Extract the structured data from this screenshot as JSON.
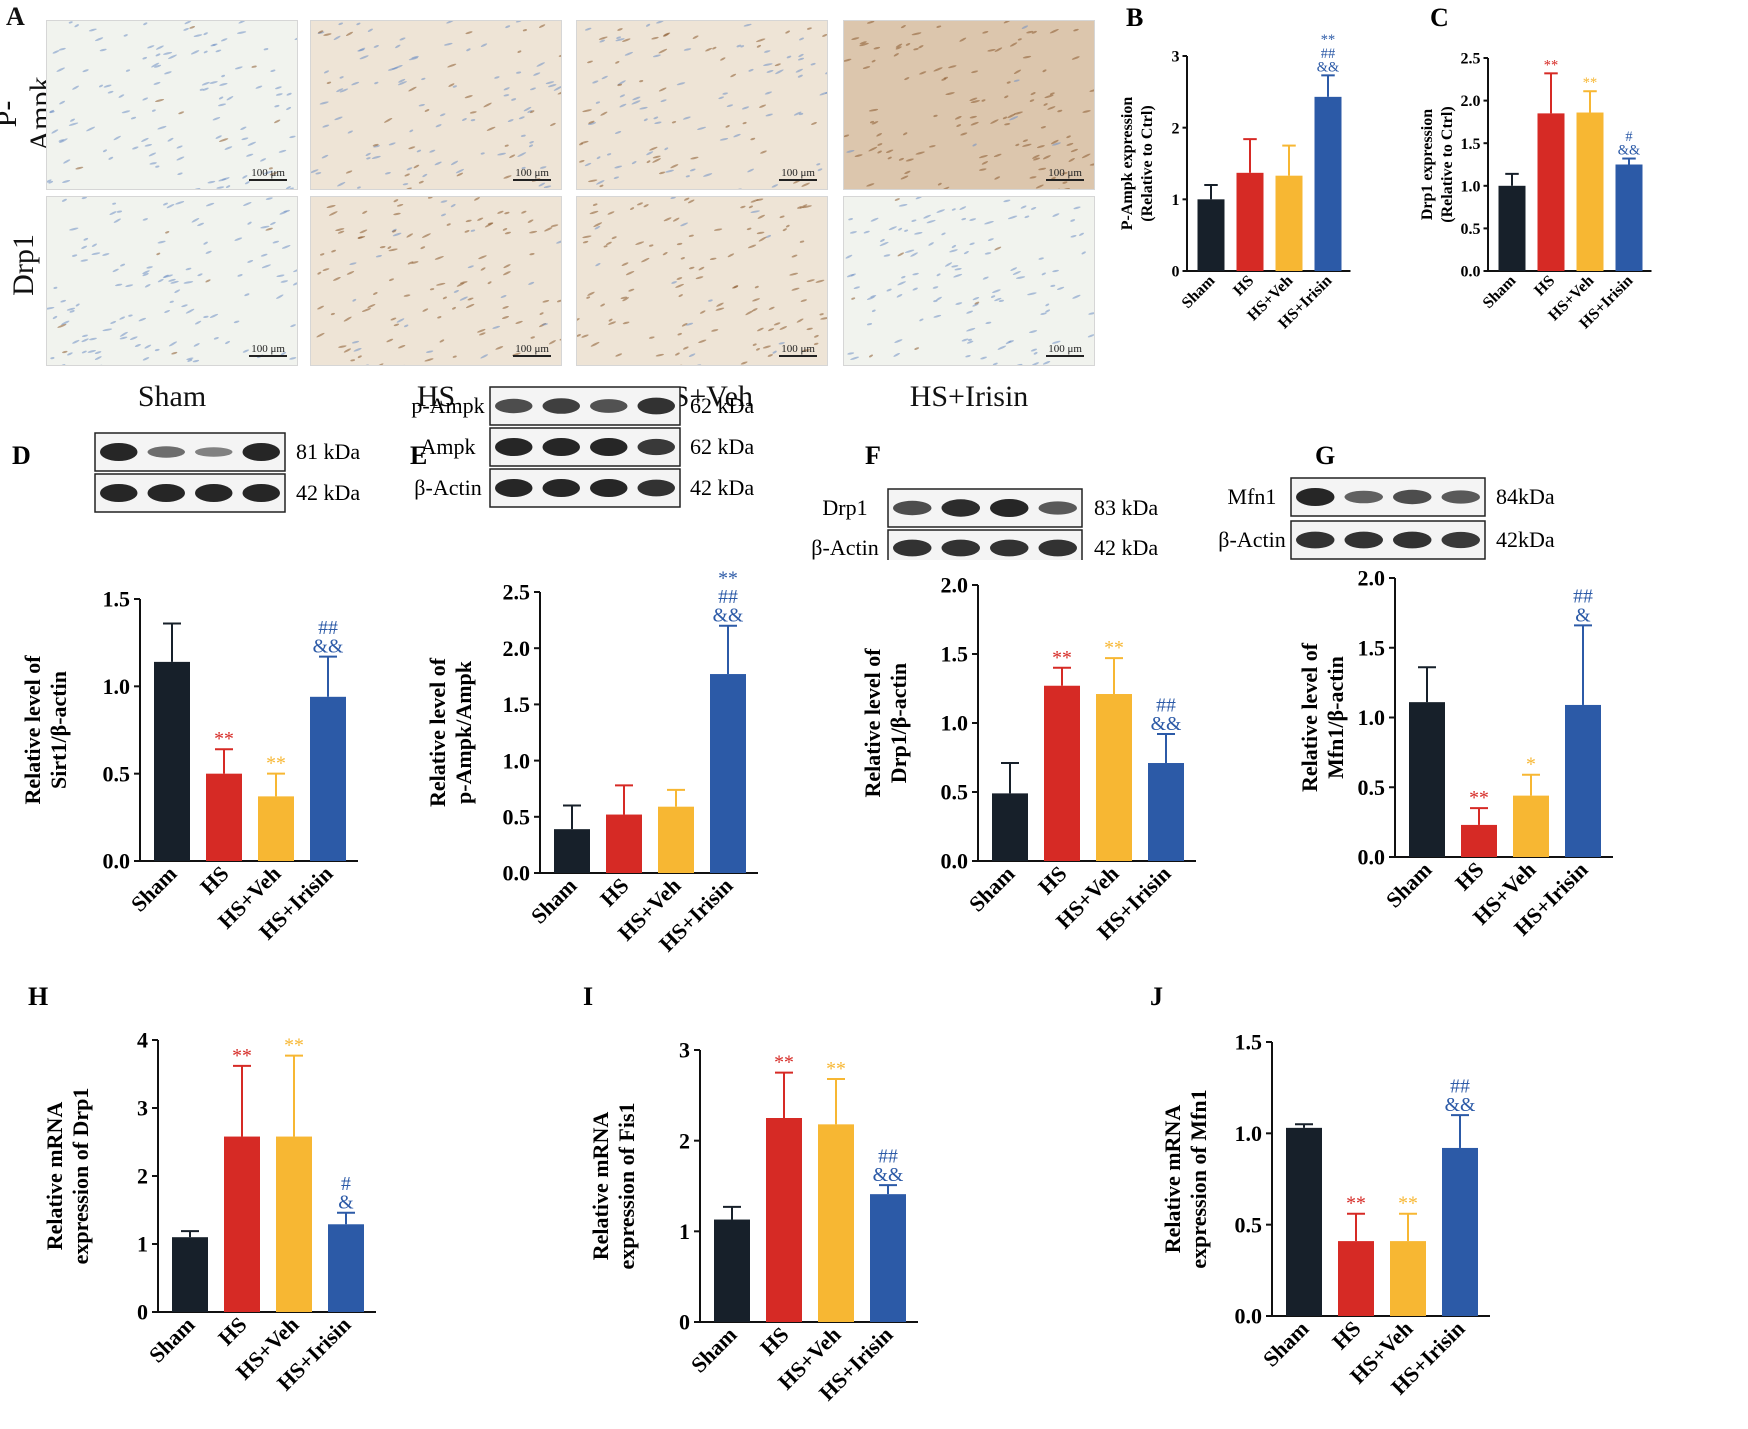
{
  "colors": {
    "Sham": "#17202a",
    "HS": "#d62a25",
    "HS+Veh": "#f7b733",
    "HS+Irisin": "#2c5aa7"
  },
  "panel_a": {
    "letter": "A",
    "row_labels": [
      "P-Ampk",
      "Drp1"
    ],
    "group_labels": [
      "Sham",
      "HS",
      "HS+Veh",
      "HS+Irisin"
    ],
    "scale_label": "100 μm",
    "stain_level": [
      [
        0.05,
        0.3,
        0.35,
        0.95
      ],
      [
        0.05,
        0.75,
        0.8,
        0.08
      ]
    ]
  },
  "blots": {
    "D": {
      "kda": [
        "81 kDa",
        "42 kDa"
      ],
      "labels": [
        "",
        ""
      ]
    },
    "E": {
      "kda": [
        "62 kDa",
        "62 kDa",
        "42 kDa"
      ],
      "labels": [
        "p-Ampk",
        "Ampk",
        "β-Actin"
      ]
    },
    "F": {
      "kda": [
        "83 kDa",
        "42 kDa"
      ],
      "labels": [
        "Drp1",
        "β-Actin"
      ]
    },
    "G": {
      "kda": [
        "84kDa",
        "42kDa"
      ],
      "labels": [
        "Mfn1",
        "β-Actin"
      ]
    }
  },
  "chart_data": [
    {
      "panel": "B",
      "type": "bar",
      "ylabel": "P-Ampk expression\n(Relative to Ctrl)",
      "categories": [
        "Sham",
        "HS",
        "HS+Veh",
        "HS+Irisin"
      ],
      "values": [
        1.0,
        1.37,
        1.33,
        2.43
      ],
      "errors": [
        0.2,
        0.47,
        0.42,
        0.3
      ],
      "ylim": [
        0,
        3
      ],
      "yticks": [
        "0",
        "1",
        "2",
        "3"
      ],
      "annotations": [
        [],
        [],
        [],
        [
          "**",
          "##",
          "&&"
        ]
      ]
    },
    {
      "panel": "C",
      "type": "bar",
      "ylabel": "Drp1 expression\n(Relative to Ctrl)",
      "categories": [
        "Sham",
        "HS",
        "HS+Veh",
        "HS+Irisin"
      ],
      "values": [
        1.0,
        1.85,
        1.86,
        1.25
      ],
      "errors": [
        0.14,
        0.47,
        0.25,
        0.07
      ],
      "ylim": [
        0,
        2.5
      ],
      "yticks": [
        "0.0",
        "0.5",
        "1.0",
        "1.5",
        "2.0",
        "2.5"
      ],
      "annotations": [
        [],
        [
          "**"
        ],
        [
          "**"
        ],
        [
          "#",
          "&&"
        ]
      ]
    },
    {
      "panel": "D",
      "type": "bar",
      "ylabel": "Relative level of\nSirt1/β-actin",
      "categories": [
        "Sham",
        "HS",
        "HS+Veh",
        "HS+Irisin"
      ],
      "values": [
        1.14,
        0.5,
        0.37,
        0.94
      ],
      "errors": [
        0.22,
        0.14,
        0.13,
        0.23
      ],
      "ylim": [
        0,
        1.5
      ],
      "yticks": [
        "0.0",
        "0.5",
        "1.0",
        "1.5"
      ],
      "annotations": [
        [],
        [
          "**"
        ],
        [
          "**"
        ],
        [
          "##",
          "&&"
        ]
      ]
    },
    {
      "panel": "E",
      "type": "bar",
      "ylabel": "Relative level of\np-Ampk/Ampk",
      "categories": [
        "Sham",
        "HS",
        "HS+Veh",
        "HS+Irisin"
      ],
      "values": [
        0.39,
        0.52,
        0.59,
        1.77
      ],
      "errors": [
        0.21,
        0.26,
        0.15,
        0.43
      ],
      "ylim": [
        0,
        2.5
      ],
      "yticks": [
        "0.0",
        "0.5",
        "1.0",
        "1.5",
        "2.0",
        "2.5"
      ],
      "annotations": [
        [],
        [],
        [],
        [
          "**",
          "##",
          "&&"
        ]
      ]
    },
    {
      "panel": "F",
      "type": "bar",
      "ylabel": "Relative level of\nDrp1/β-actin",
      "categories": [
        "Sham",
        "HS",
        "HS+Veh",
        "HS+Irisin"
      ],
      "values": [
        0.49,
        1.27,
        1.21,
        0.71
      ],
      "errors": [
        0.22,
        0.13,
        0.26,
        0.21
      ],
      "ylim": [
        0,
        2.0
      ],
      "yticks": [
        "0.0",
        "0.5",
        "1.0",
        "1.5",
        "2.0"
      ],
      "annotations": [
        [],
        [
          "**"
        ],
        [
          "**"
        ],
        [
          "##",
          "&&"
        ]
      ]
    },
    {
      "panel": "G",
      "type": "bar",
      "ylabel": "Relative level of\nMfn1/β-actin",
      "categories": [
        "Sham",
        "HS",
        "HS+Veh",
        "HS+Irisin"
      ],
      "values": [
        1.11,
        0.23,
        0.44,
        1.09
      ],
      "errors": [
        0.25,
        0.12,
        0.15,
        0.57
      ],
      "ylim": [
        0,
        2.0
      ],
      "yticks": [
        "0.0",
        "0.5",
        "1.0",
        "1.5",
        "2.0"
      ],
      "annotations": [
        [],
        [
          "**"
        ],
        [
          "*"
        ],
        [
          "##",
          "&"
        ]
      ]
    },
    {
      "panel": "H",
      "type": "bar",
      "ylabel": "Relative mRNA\nexpression of Drp1",
      "categories": [
        "Sham",
        "HS",
        "HS+Veh",
        "HS+Irisin"
      ],
      "values": [
        1.1,
        2.58,
        2.58,
        1.29
      ],
      "errors": [
        0.09,
        1.04,
        1.19,
        0.17
      ],
      "ylim": [
        0,
        4
      ],
      "yticks": [
        "0",
        "1",
        "2",
        "3",
        "4"
      ],
      "annotations": [
        [],
        [
          "**"
        ],
        [
          "**"
        ],
        [
          "#",
          "&"
        ]
      ]
    },
    {
      "panel": "I",
      "type": "bar",
      "ylabel": "Relative mRNA\nexpression of Fis1",
      "categories": [
        "Sham",
        "HS",
        "HS+Veh",
        "HS+Irisin"
      ],
      "values": [
        1.13,
        2.25,
        2.18,
        1.41
      ],
      "errors": [
        0.14,
        0.5,
        0.5,
        0.1
      ],
      "ylim": [
        0,
        3
      ],
      "yticks": [
        "0",
        "1",
        "2",
        "3"
      ],
      "annotations": [
        [],
        [
          "**"
        ],
        [
          "**"
        ],
        [
          "##",
          "&&"
        ]
      ]
    },
    {
      "panel": "J",
      "type": "bar",
      "ylabel": "Relative mRNA\nexpression of Mfn1",
      "categories": [
        "Sham",
        "HS",
        "HS+Veh",
        "HS+Irisin"
      ],
      "values": [
        1.03,
        0.41,
        0.41,
        0.92
      ],
      "errors": [
        0.02,
        0.15,
        0.15,
        0.18
      ],
      "ylim": [
        0,
        1.5
      ],
      "yticks": [
        "0.0",
        "0.5",
        "1.0",
        "1.5"
      ],
      "annotations": [
        [],
        [
          "**"
        ],
        [
          "**"
        ],
        [
          "##",
          "&&"
        ]
      ]
    }
  ]
}
